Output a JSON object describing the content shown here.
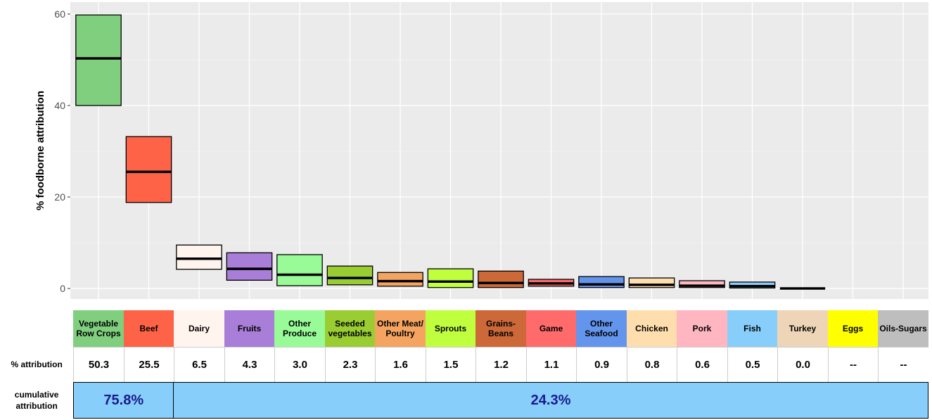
{
  "chart_data": {
    "type": "crossbar",
    "y_label": "% foodborne attribution",
    "categories": [
      "Vegetable Row Crops",
      "Beef",
      "Dairy",
      "Fruits",
      "Other Produce",
      "Seeded vegetables",
      "Other Meat/ Poultry",
      "Sprouts",
      "Grains-Beans",
      "Game",
      "Other Seafood",
      "Chicken",
      "Pork",
      "Fish",
      "Turkey",
      "Eggs",
      "Oils-Sugars"
    ],
    "colors": [
      "#7fcf7f",
      "#ff6347",
      "#fff5ee",
      "#a87ed8",
      "#98fb98",
      "#9acd32",
      "#f4a460",
      "#c0ff3e",
      "#cd6839",
      "#ff6a6a",
      "#6495ed",
      "#ffdead",
      "#ffb6c1",
      "#87cefa",
      "#eed5b7",
      "#ffff00",
      "#bebebe"
    ],
    "values": [
      50.3,
      25.5,
      6.5,
      4.3,
      3.0,
      2.3,
      1.6,
      1.5,
      1.2,
      1.1,
      0.9,
      0.8,
      0.6,
      0.5,
      0.0,
      null,
      null
    ],
    "value_labels": [
      "50.3",
      "25.5",
      "6.5",
      "4.3",
      "3.0",
      "2.3",
      "1.6",
      "1.5",
      "1.2",
      "1.1",
      "0.9",
      "0.8",
      "0.6",
      "0.5",
      "0.0",
      "--",
      "--"
    ],
    "lower": [
      40,
      18.8,
      4.2,
      1.8,
      0.6,
      0.8,
      0.5,
      0.2,
      0.2,
      0.5,
      0.2,
      0.2,
      0.2,
      0.1,
      0,
      null,
      null
    ],
    "upper": [
      59.8,
      33.2,
      9.5,
      7.8,
      7.4,
      4.9,
      3.5,
      4.3,
      3.8,
      2.0,
      2.6,
      2.3,
      1.7,
      1.4,
      0,
      null,
      null
    ],
    "ylim": [
      -2.3,
      62.6
    ],
    "yticks": [
      0,
      20,
      40,
      60
    ],
    "grid": true
  },
  "table": {
    "row_labels": [
      "% attribution",
      "cumulative attribution"
    ],
    "cumulative": [
      "75.8%",
      "24.3%"
    ]
  }
}
